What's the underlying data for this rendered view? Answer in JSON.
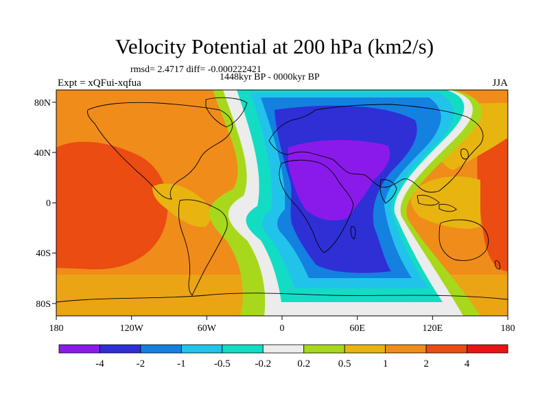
{
  "title": "Velocity Potential at 200 hPa (km2/s)",
  "stats_text": "rmsd= 2.4717 diff= -0.000222421",
  "period_text": "1448kyr BP - 0000kyr BP",
  "experiment_text": "Expt = xQFui-xqfua",
  "season": "JJA",
  "map": {
    "projection": "cylindrical equidistant",
    "lon_range": [
      -180,
      180
    ],
    "lat_range": [
      -90,
      90
    ],
    "lon_ticks": [
      "180",
      "120W",
      "60W",
      "0",
      "60E",
      "120E",
      "180"
    ],
    "lat_ticks": [
      "80N",
      "40N",
      "0",
      "40S",
      "80S"
    ],
    "field": "velocity potential anomaly",
    "negative_centre": "Africa / Indian Ocean / Eurasia",
    "positive_centres": [
      "Pacific (west of Americas)",
      "West Pacific / Australia"
    ]
  },
  "colorbar": {
    "labels": [
      "-4",
      "-2",
      "-1",
      "-0.5",
      "-0.2",
      "0.2",
      "0.5",
      "1",
      "2",
      "4"
    ],
    "colors": [
      "#8a1aea",
      "#2f2fd6",
      "#1480e0",
      "#22c3ea",
      "#12dcc4",
      "#ececec",
      "#a8d81c",
      "#e8b410",
      "#f08c1a",
      "#ea4c12",
      "#e81414"
    ]
  }
}
